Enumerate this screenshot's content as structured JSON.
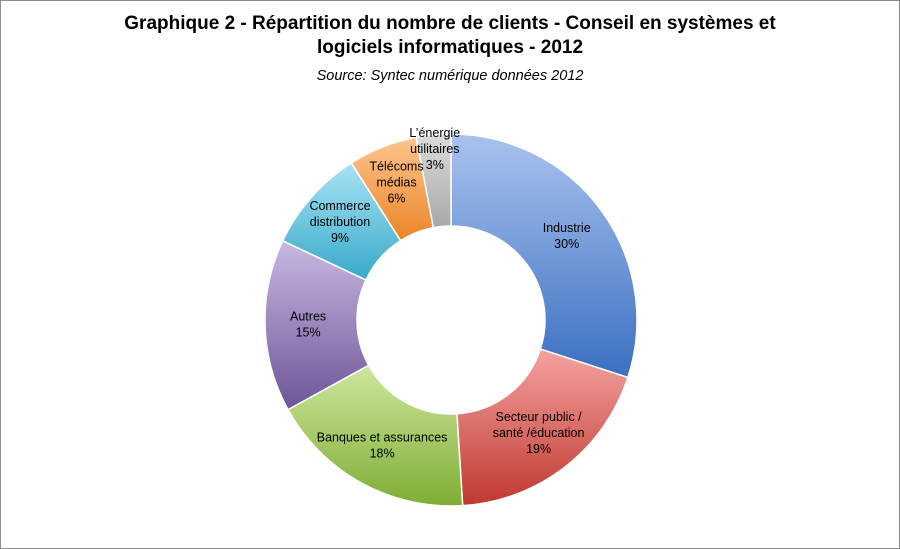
{
  "header": {
    "title_line1": "Graphique 2 - Répartition du nombre de clients - Conseil en systèmes et",
    "title_line2": "logiciels informatiques - 2012",
    "subtitle": "Source: Syntec numérique données 2012"
  },
  "chart_data": {
    "type": "pie",
    "variant": "donut",
    "title": "Graphique 2 - Répartition du nombre de clients - Conseil en systèmes et logiciels informatiques - 2012",
    "subtitle": "Source: Syntec numérique données 2012",
    "slices": [
      {
        "label_lines": [
          "Industrie"
        ],
        "value": 30,
        "value_label": "30%",
        "color_light": "#a9c3ee",
        "color_dark": "#3a6fc1"
      },
      {
        "label_lines": [
          "Secteur public /",
          "santé /éducation"
        ],
        "value": 19,
        "value_label": "19%",
        "color_light": "#f4a3a1",
        "color_dark": "#c0392f"
      },
      {
        "label_lines": [
          "Banques et assurances"
        ],
        "value": 18,
        "value_label": "18%",
        "color_light": "#cde79d",
        "color_dark": "#7fad35"
      },
      {
        "label_lines": [
          "Autres"
        ],
        "value": 15,
        "value_label": "15%",
        "color_light": "#c9b8e3",
        "color_dark": "#6d5596"
      },
      {
        "label_lines": [
          "Commerce",
          "distribution"
        ],
        "value": 9,
        "value_label": "9%",
        "color_light": "#a9e3f5",
        "color_dark": "#37a9c9"
      },
      {
        "label_lines": [
          "Télécoms",
          "médias"
        ],
        "value": 6,
        "value_label": "6%",
        "color_light": "#fcc58e",
        "color_dark": "#ec8528"
      },
      {
        "label_lines": [
          "L’énergie",
          "utilitaires"
        ],
        "value": 3,
        "value_label": "3%",
        "color_light": "#dcdcdc",
        "color_dark": "#a8a8a8"
      }
    ]
  }
}
